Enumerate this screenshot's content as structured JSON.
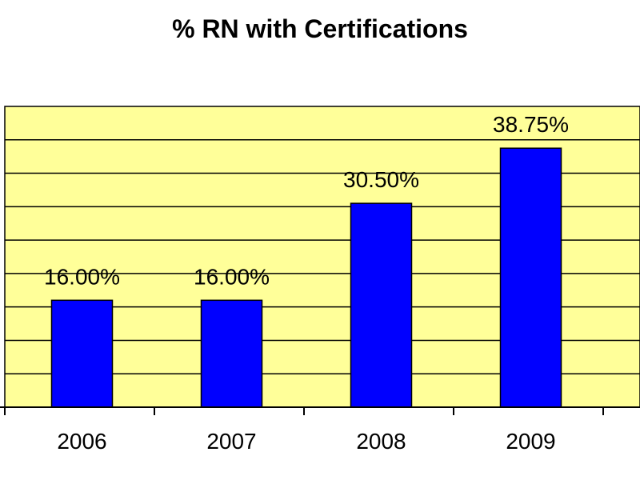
{
  "chart_data": {
    "type": "bar",
    "title": "% RN with Certifications",
    "xlabel": "",
    "ylabel": "",
    "categories": [
      "2006",
      "2007",
      "2008",
      "2009"
    ],
    "values": [
      16.0,
      16.0,
      30.5,
      38.75
    ],
    "data_labels": [
      "16.00%",
      "16.00%",
      "30.50%",
      "38.75%"
    ],
    "ylim": [
      0,
      45
    ],
    "gridlines": true,
    "legend": "none",
    "colors": {
      "bar": "#0000ff",
      "bar_edge": "#000000",
      "plot_background": "#ffff99",
      "gridline": "#000000"
    }
  }
}
